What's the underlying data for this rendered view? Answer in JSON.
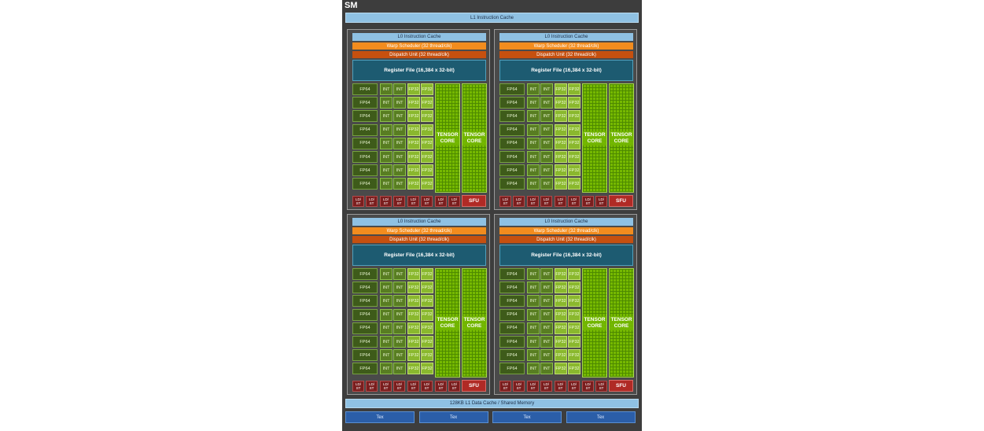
{
  "sm": {
    "title": "SM",
    "l1_instruction_cache": "L1 Instruction Cache",
    "l1_data_cache": "128KB L1 Data Cache / Shared Memory",
    "tex_units": [
      "Tex",
      "Tex",
      "Tex",
      "Tex"
    ]
  },
  "partition": {
    "l0_cache": "L0 Instruction Cache",
    "warp_scheduler": "Warp Scheduler (32 thread/clk)",
    "dispatch_unit": "Dispatch Unit (32 thread/clk)",
    "register_file": "Register File (16,384 x 32-bit)",
    "fp64": "FP64",
    "int": "INT",
    "fp32": "FP32",
    "tensor_core": "TENSOR CORE",
    "ld_st": "LD/ ST",
    "sfu": "SFU",
    "rows": 8,
    "ld_st_units": 8
  },
  "colors": {
    "sm_background": "#3d3d3d",
    "cache": "#8fc1e3",
    "warp_scheduler": "#f28c1e",
    "dispatch_unit": "#c6500f",
    "register_file": "#1d5b71",
    "fp64": "#3e5b1a",
    "int": "#587d22",
    "fp32": "#8ab82e",
    "tensor_core": "#76b900",
    "ld_st": "#7a1e1e",
    "sfu": "#b02a25",
    "tex": "#2b5ea8"
  }
}
